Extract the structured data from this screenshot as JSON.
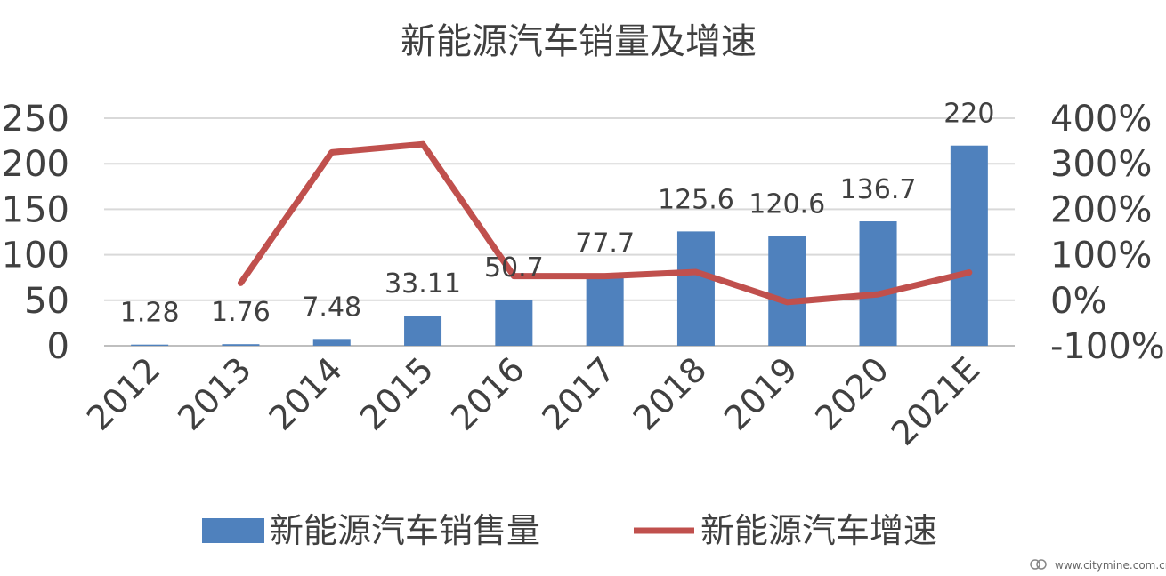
{
  "chart_data": {
    "type": "bar",
    "title": "新能源汽车销量及增速",
    "categories": [
      "2012",
      "2013",
      "2014",
      "2015",
      "2016",
      "2017",
      "2018",
      "2019",
      "2020",
      "2021E"
    ],
    "series": [
      {
        "name": "新能源汽车销售量",
        "type": "bar",
        "axis": "left",
        "color": "#4F81BD",
        "values": [
          1.28,
          1.76,
          7.48,
          33.11,
          50.7,
          77.7,
          125.6,
          120.6,
          136.7,
          220
        ],
        "data_labels": [
          "1.28",
          "1.76",
          "7.48",
          "33.11",
          "50.7",
          "77.7",
          "125.6",
          "120.6",
          "136.7",
          "220"
        ]
      },
      {
        "name": "新能源汽车增速",
        "type": "line",
        "axis": "right",
        "color": "#C0504D",
        "values": [
          null,
          0.38,
          3.25,
          3.43,
          0.53,
          0.53,
          0.62,
          -0.04,
          0.13,
          0.61
        ]
      }
    ],
    "y_left": {
      "min": 0,
      "max": 250,
      "ticks": [
        0,
        50,
        100,
        150,
        200,
        250
      ],
      "tick_labels": [
        "0",
        "50",
        "100",
        "150",
        "200",
        "250"
      ]
    },
    "y_right": {
      "min": -1,
      "max": 4,
      "ticks": [
        -1,
        0,
        1,
        2,
        3,
        4
      ],
      "tick_labels": [
        "-100%",
        "0%",
        "100%",
        "200%",
        "300%",
        "400%"
      ]
    },
    "grid": true,
    "legend": "bottom"
  },
  "watermark": "www.citymine.com.cn"
}
